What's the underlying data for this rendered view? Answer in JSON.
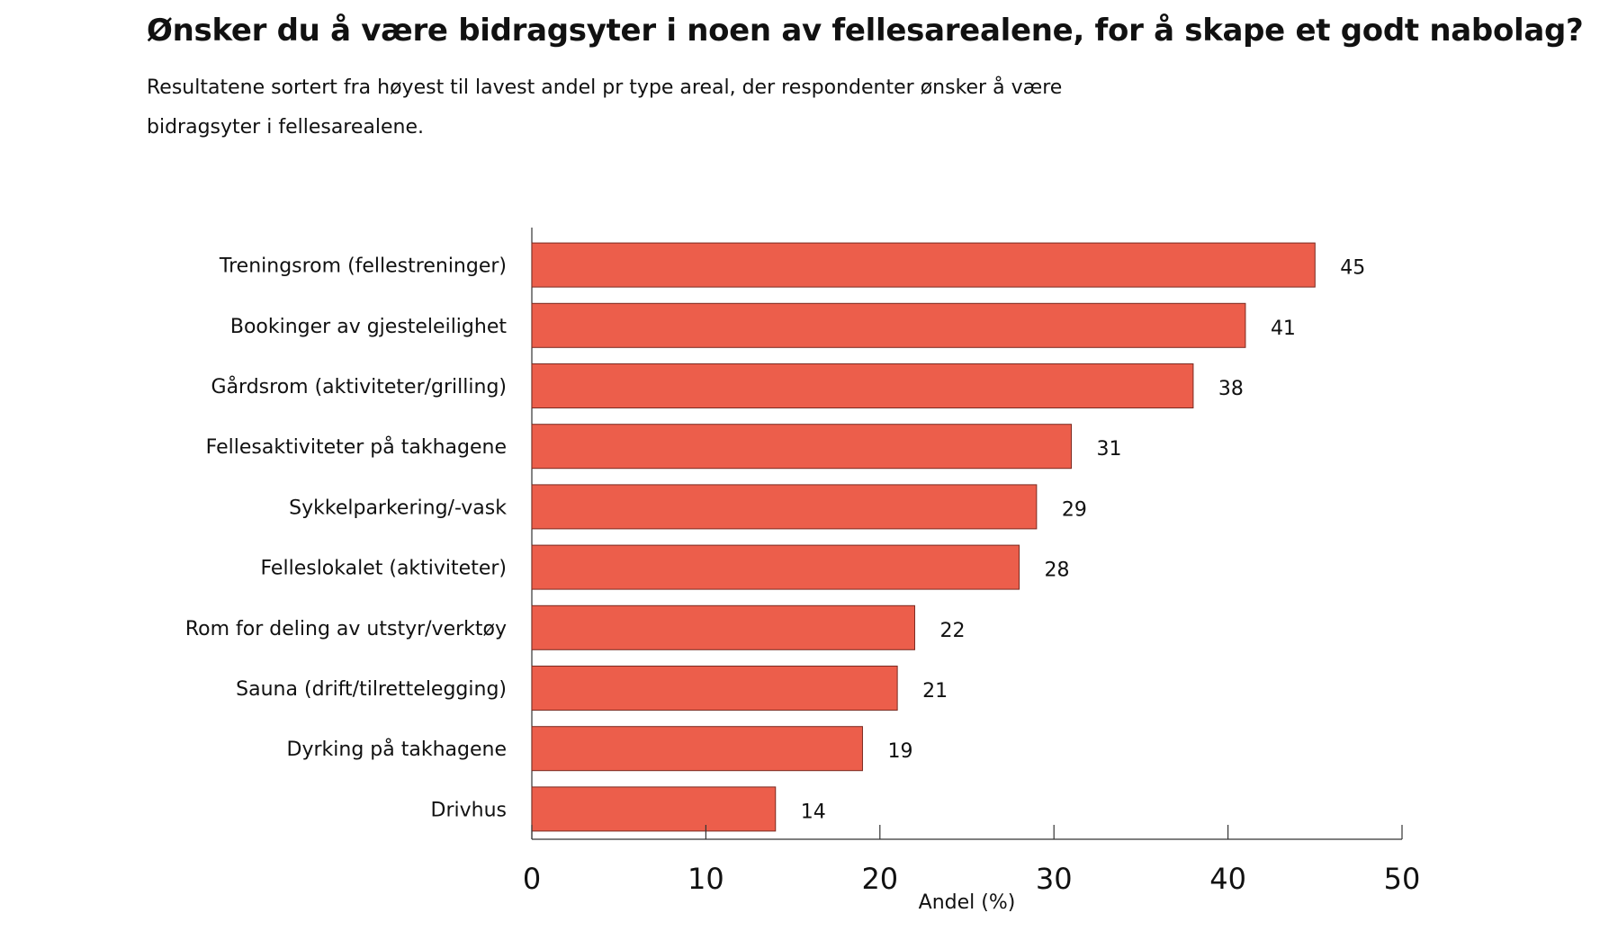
{
  "chart_data": {
    "type": "bar",
    "orientation": "horizontal",
    "title": "Ønsker du å være bidragsyter i noen av fellesarealene, for å skape et godt nabolag?",
    "subtitle": "Resultatene sortert fra høyest til lavest andel pr type areal, der respondenter ønsker å være bidragsyter i fellesarealene.",
    "xlabel": "Andel (%)",
    "ylabel": "",
    "xlim": [
      0,
      50
    ],
    "xticks": [
      "0",
      "10",
      "20",
      "30",
      "40",
      "50"
    ],
    "grid": false,
    "categories": [
      "Treningsrom (fellestreninger)",
      "Bookinger av gjesteleilighet",
      "Gårdsrom (aktiviteter/grilling)",
      "Fellesaktiviteter på takhagene",
      "Sykkelparkering/-vask",
      "Felleslokalet (aktiviteter)",
      "Rom for deling av utstyr/verktøy",
      "Sauna (drift/tilrettelegging)",
      "Dyrking på takhagene",
      "Drivhus"
    ],
    "values": [
      45,
      41,
      38,
      31,
      29,
      28,
      22,
      21,
      19,
      14
    ],
    "bar_color": "#ec5e4b",
    "bar_edge_color": "#7a2a20"
  }
}
